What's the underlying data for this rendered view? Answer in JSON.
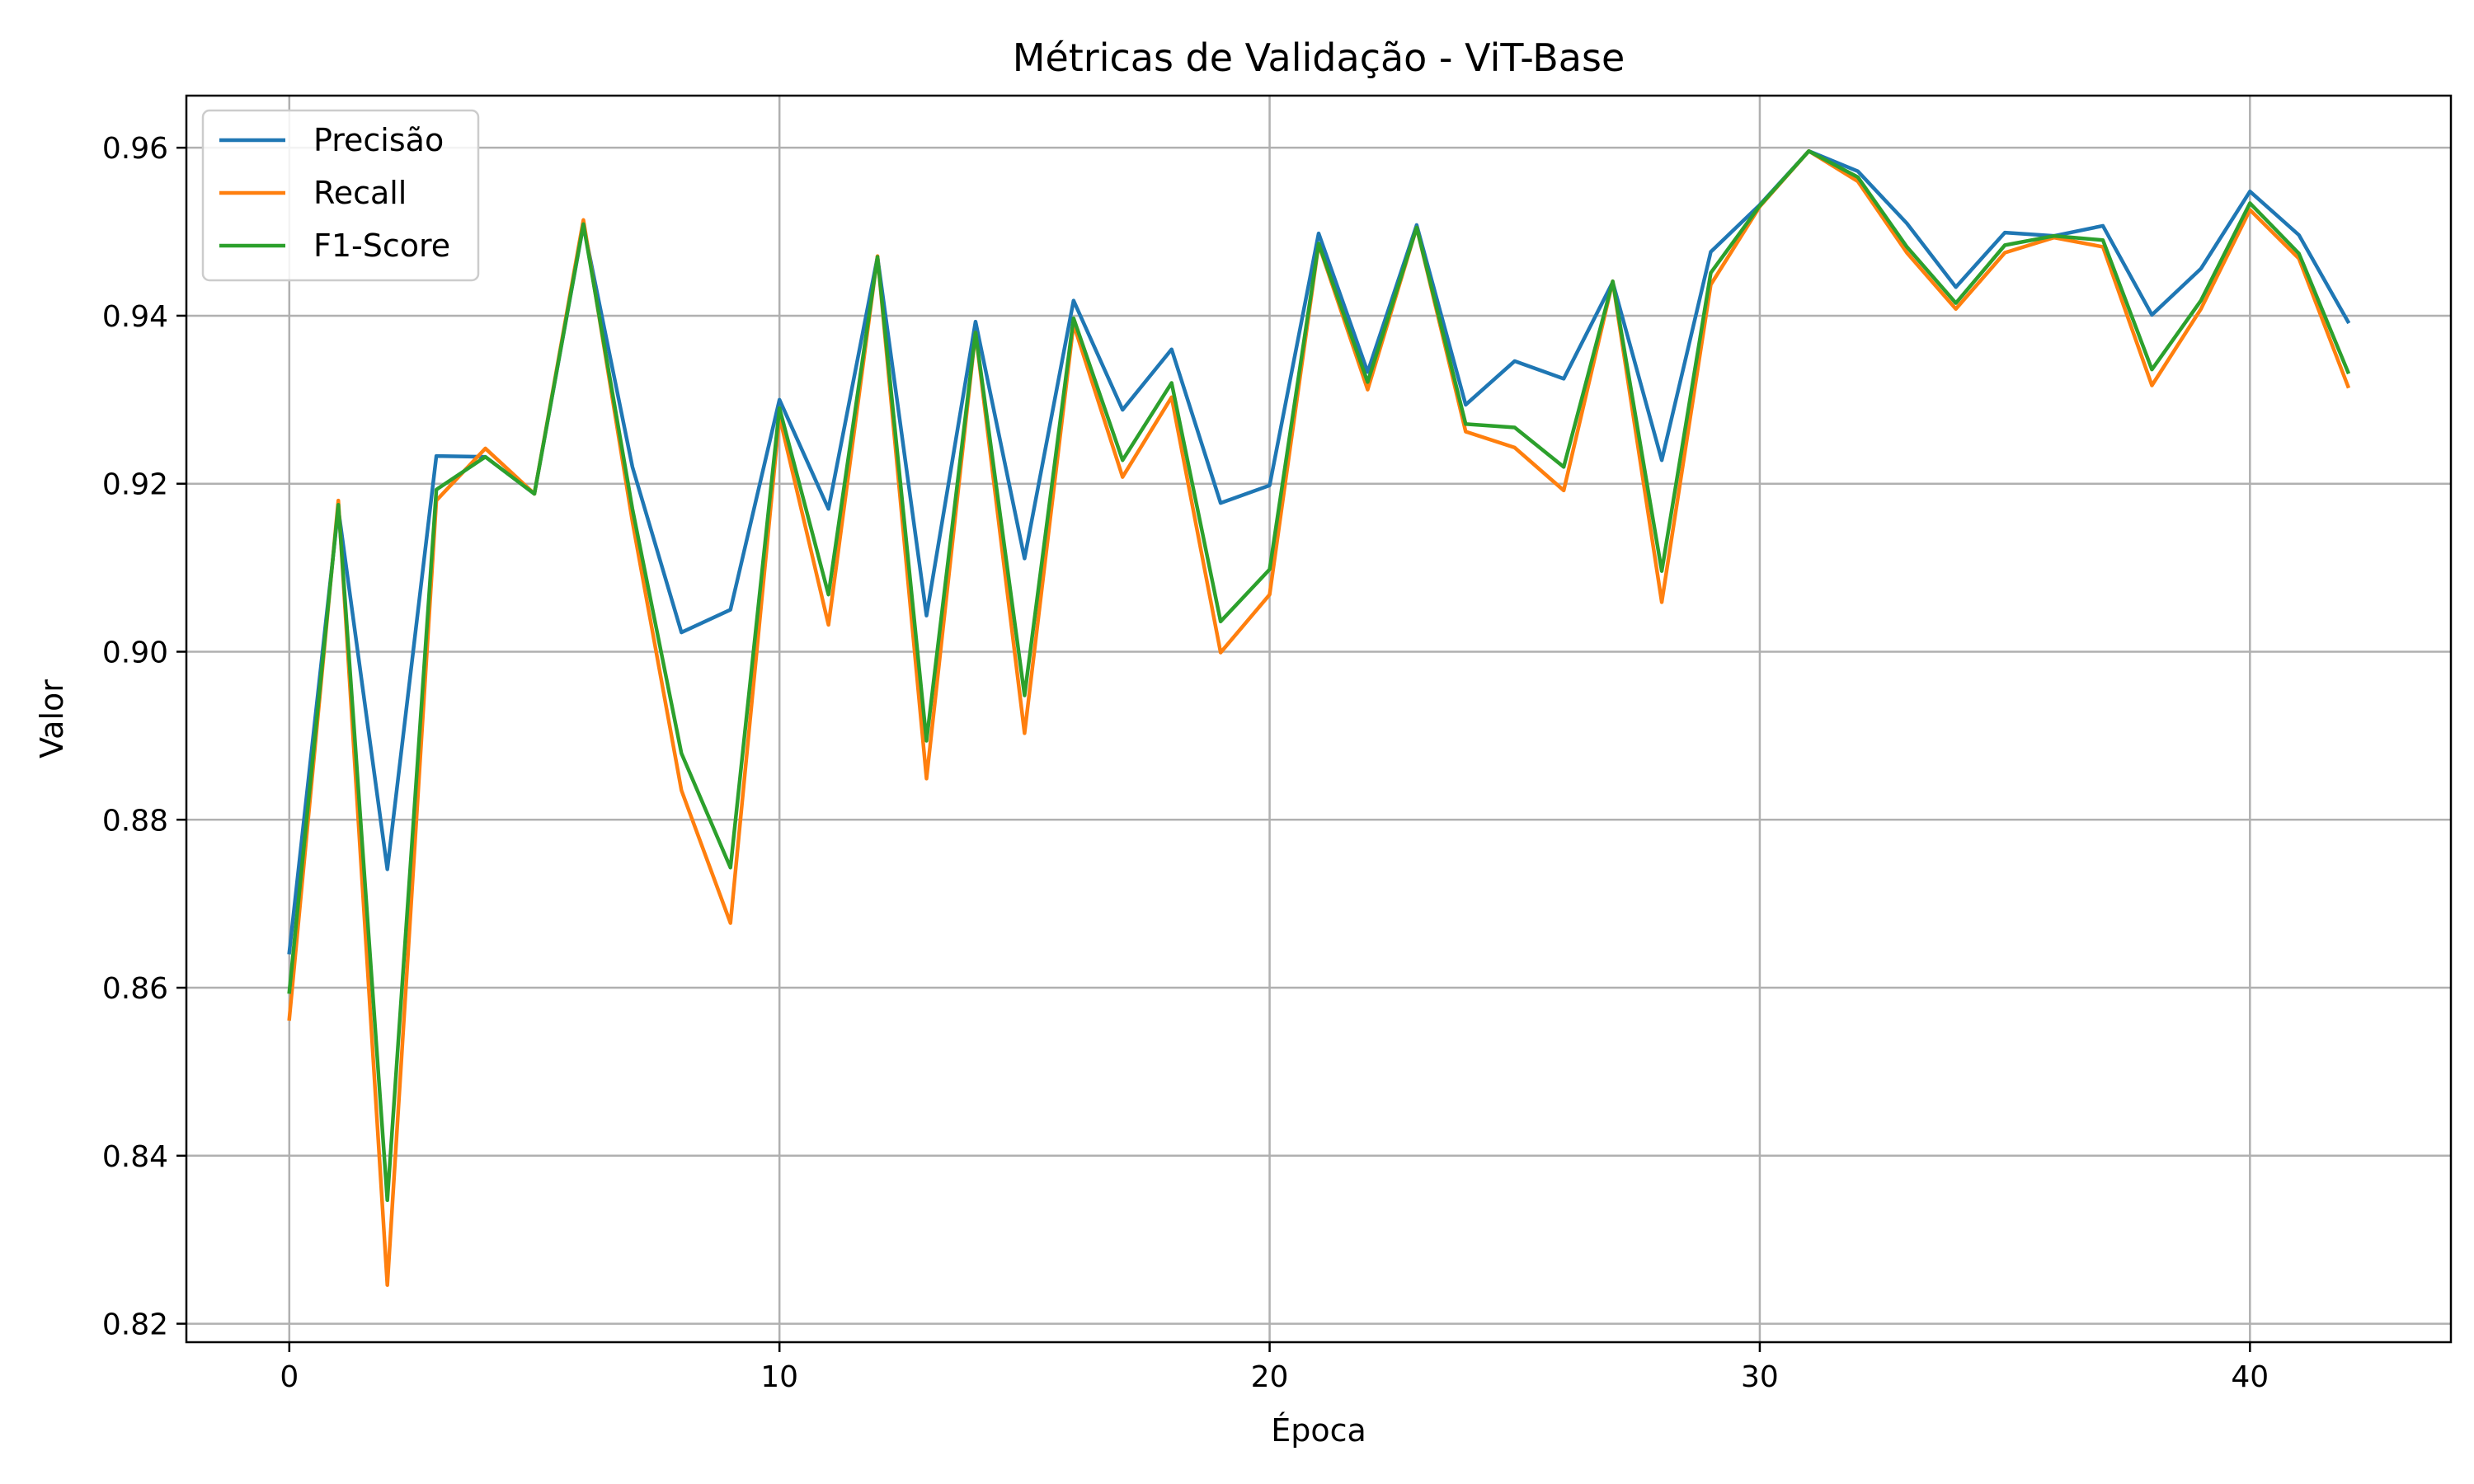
{
  "chart_data": {
    "type": "line",
    "title": "Métricas de Validação - ViT-Base",
    "xlabel": "Época",
    "ylabel": "Valor",
    "xlim": [
      -2.1,
      44.1
    ],
    "ylim": [
      0.8178,
      0.9662
    ],
    "xticks": [
      0,
      10,
      20,
      30,
      40
    ],
    "xtick_labels": [
      "0",
      "10",
      "20",
      "30",
      "40"
    ],
    "yticks": [
      0.82,
      0.84,
      0.86,
      0.88,
      0.9,
      0.92,
      0.94,
      0.96
    ],
    "ytick_labels": [
      "0.82",
      "0.84",
      "0.86",
      "0.88",
      "0.90",
      "0.92",
      "0.94",
      "0.96"
    ],
    "grid": true,
    "legend_position": "upper-left",
    "x": [
      0,
      1,
      2,
      3,
      4,
      5,
      6,
      7,
      8,
      9,
      10,
      11,
      12,
      13,
      14,
      15,
      16,
      17,
      18,
      19,
      20,
      21,
      22,
      23,
      24,
      25,
      26,
      27,
      28,
      29,
      30,
      31,
      32,
      33,
      34,
      35,
      36,
      37,
      38,
      39,
      40,
      41,
      42
    ],
    "series": [
      {
        "name": "Precisão",
        "color": "#1f77b4",
        "values": [
          0.8642,
          0.917,
          0.8741,
          0.9233,
          0.9232,
          0.9188,
          0.9508,
          0.922,
          0.9023,
          0.905,
          0.93,
          0.917,
          0.947,
          0.9043,
          0.9393,
          0.9111,
          0.9418,
          0.9288,
          0.936,
          0.9177,
          0.9198,
          0.9498,
          0.9333,
          0.9508,
          0.9294,
          0.9346,
          0.9325,
          0.944,
          0.9228,
          0.9476,
          0.9532,
          0.9596,
          0.9572,
          0.951,
          0.9434,
          0.9499,
          0.9495,
          0.9507,
          0.9401,
          0.9456,
          0.9548,
          0.9496,
          0.9393
        ]
      },
      {
        "name": "Recall",
        "color": "#ff7f0e",
        "values": [
          0.8563,
          0.918,
          0.8246,
          0.918,
          0.9242,
          0.9188,
          0.9514,
          0.9155,
          0.8835,
          0.8677,
          0.928,
          0.9032,
          0.9471,
          0.8849,
          0.938,
          0.8903,
          0.939,
          0.9208,
          0.9303,
          0.8999,
          0.9068,
          0.9485,
          0.9312,
          0.9505,
          0.9262,
          0.9243,
          0.9192,
          0.9441,
          0.9059,
          0.9437,
          0.953,
          0.9596,
          0.956,
          0.9475,
          0.9408,
          0.9475,
          0.9493,
          0.9482,
          0.9317,
          0.9408,
          0.9526,
          0.9468,
          0.9316
        ]
      },
      {
        "name": "F1-Score",
        "color": "#2ca02c",
        "values": [
          0.8595,
          0.9175,
          0.8347,
          0.9193,
          0.9232,
          0.9188,
          0.9509,
          0.917,
          0.8879,
          0.8743,
          0.929,
          0.9068,
          0.947,
          0.8894,
          0.938,
          0.8948,
          0.9397,
          0.9228,
          0.932,
          0.9036,
          0.9098,
          0.9486,
          0.9321,
          0.9505,
          0.9271,
          0.9267,
          0.922,
          0.9441,
          0.9096,
          0.9451,
          0.9531,
          0.9596,
          0.9565,
          0.9482,
          0.9415,
          0.9484,
          0.9495,
          0.949,
          0.9336,
          0.9418,
          0.9534,
          0.9474,
          0.9333
        ]
      }
    ]
  }
}
